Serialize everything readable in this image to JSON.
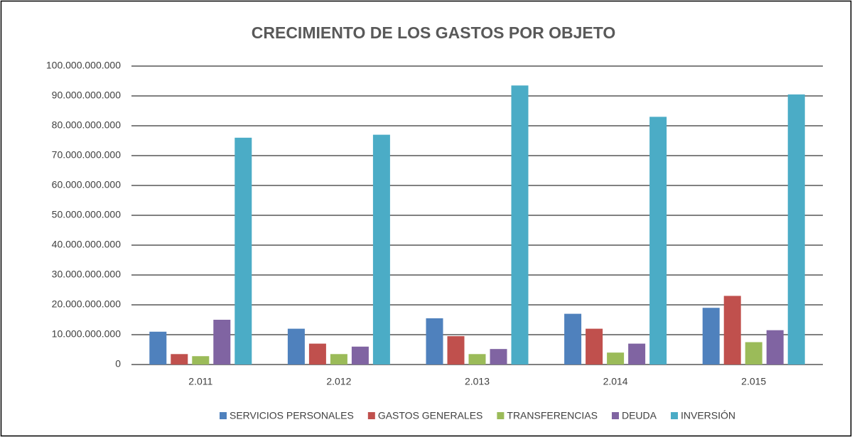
{
  "chart_data": {
    "type": "bar",
    "title": "CRECIMIENTO DE LOS GASTOS POR OBJETO",
    "categories": [
      "2.011",
      "2.012",
      "2.013",
      "2.014",
      "2.015"
    ],
    "series": [
      {
        "name": "SERVICIOS PERSONALES",
        "color": "#4f81bd",
        "values": [
          11000000000,
          12000000000,
          15500000000,
          17000000000,
          19000000000
        ]
      },
      {
        "name": "GASTOS GENERALES",
        "color": "#c0504d",
        "values": [
          3500000000,
          7000000000,
          9500000000,
          12000000000,
          23000000000
        ]
      },
      {
        "name": "TRANSFERENCIAS",
        "color": "#9bbb59",
        "values": [
          2800000000,
          3500000000,
          3500000000,
          4000000000,
          7500000000
        ]
      },
      {
        "name": "DEUDA",
        "color": "#8064a2",
        "values": [
          15000000000,
          6000000000,
          5200000000,
          7000000000,
          11500000000
        ]
      },
      {
        "name": "INVERSIÓN",
        "color": "#4bacc6",
        "values": [
          76000000000,
          77000000000,
          93500000000,
          83000000000,
          90500000000
        ]
      }
    ],
    "ylim": [
      0,
      100000000000
    ],
    "yticks": [
      0,
      {
        "value": 10000000000,
        "label": "10.000.000.000"
      },
      {
        "value": 20000000000,
        "label": "20.000.000.000"
      },
      {
        "value": 30000000000,
        "label": "30.000.000.000"
      },
      {
        "value": 40000000000,
        "label": "40.000.000.000"
      },
      {
        "value": 50000000000,
        "label": "50.000.000.000"
      },
      {
        "value": 60000000000,
        "label": "60.000.000.000"
      },
      {
        "value": 70000000000,
        "label": "70.000.000.000"
      },
      {
        "value": 80000000000,
        "label": "80.000.000.000"
      },
      {
        "value": 90000000000,
        "label": "90.000.000.000"
      },
      {
        "value": 100000000000,
        "label": "100.000.000.000"
      }
    ],
    "grid": true,
    "legend": "bottom"
  }
}
